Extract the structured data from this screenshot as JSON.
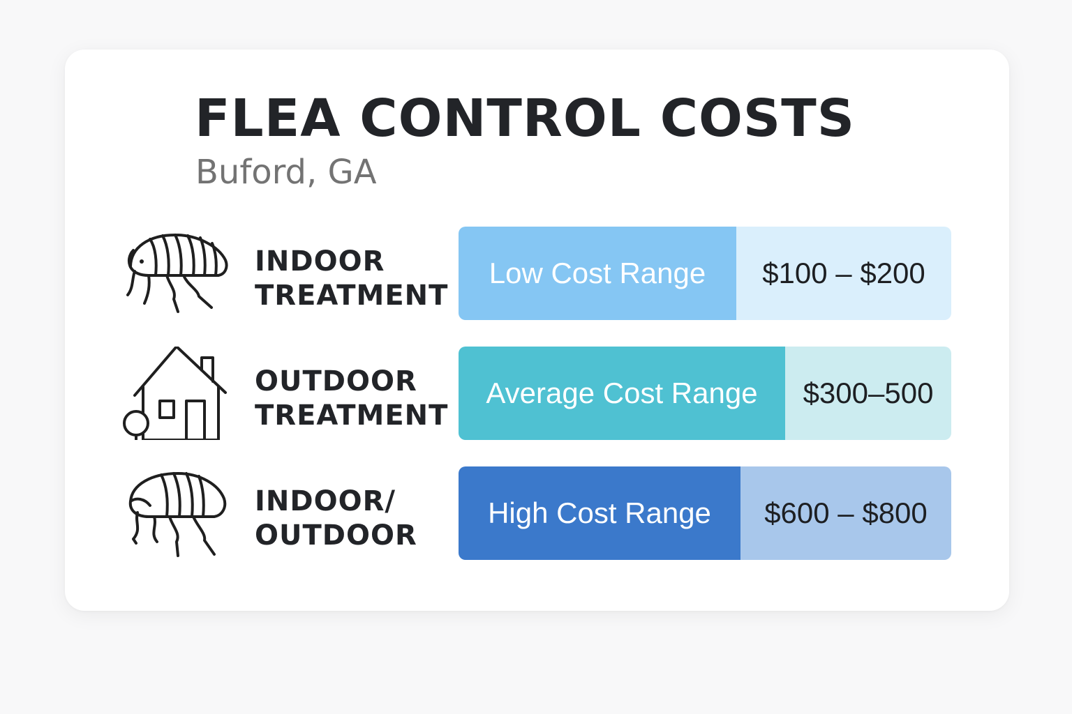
{
  "title": "FLEA CONTROL COSTS",
  "subtitle": "Buford, GA",
  "rows": [
    {
      "icon": "flea-icon",
      "label_line1": "INDOOR",
      "label_line2": "TREATMENT",
      "range_label": "Low Cost Range",
      "price": "$100 – $200",
      "range_color": "#85c6f3",
      "price_color": "#daeffc"
    },
    {
      "icon": "house-icon",
      "label_line1": "OUTDOOR",
      "label_line2": "TREATMENT",
      "range_label": "Average Cost Range",
      "price": "$300–500",
      "range_color": "#4fc1d2",
      "price_color": "#ccecf0"
    },
    {
      "icon": "flea-icon",
      "label_line1": "INDOOR/",
      "label_line2": "OUTDOOR",
      "range_label": "High Cost Range",
      "price": "$600 – $800",
      "range_color": "#3b79cb",
      "price_color": "#a8c7eb"
    }
  ]
}
